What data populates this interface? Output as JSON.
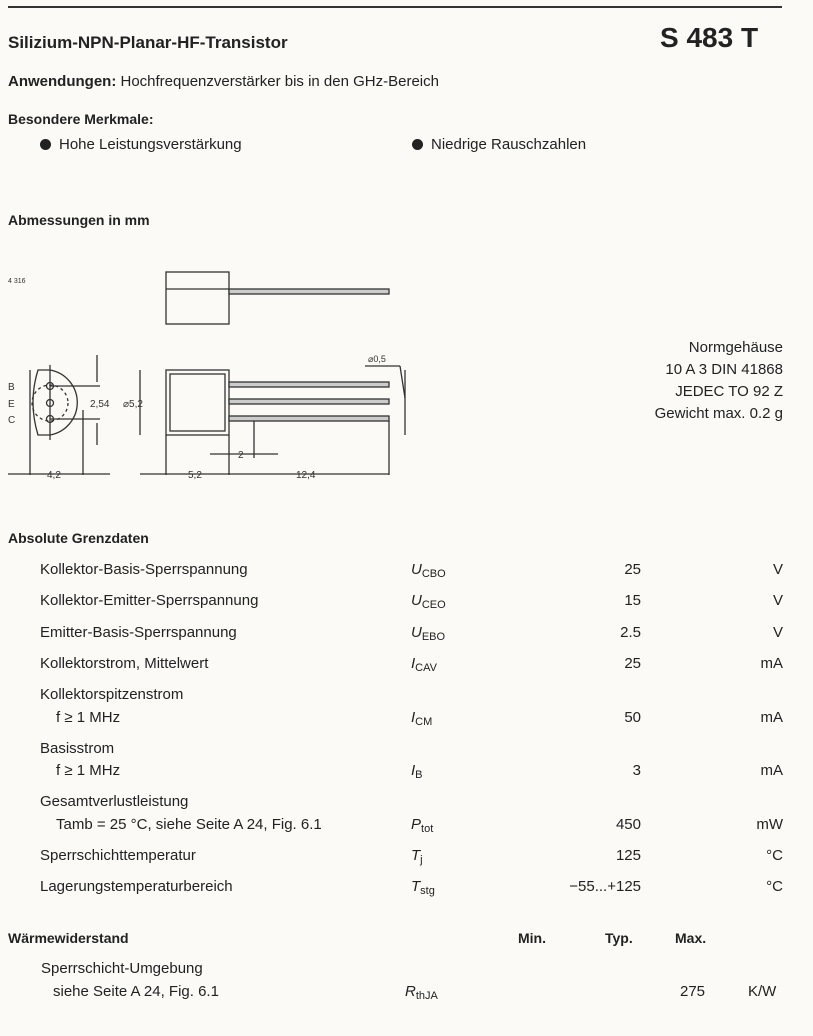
{
  "header": {
    "title": "Silizium-NPN-Planar-HF-Transistor",
    "part": "S 483 T"
  },
  "applications": {
    "label": "Anwendungen:",
    "text": "Hochfrequenzverstärker bis in den GHz-Bereich"
  },
  "features": {
    "heading": "Besondere Merkmale:",
    "items": [
      "Hohe Leistungsverstärkung",
      "Niedrige Rauschzahlen"
    ]
  },
  "dimensions": {
    "heading": "Abmessungen in mm",
    "drawing_id": "4 316",
    "pins": [
      "B",
      "E",
      "C"
    ],
    "labels": {
      "pitch": "2,54",
      "diameter": "⌀5,2",
      "lead_dia": "⌀0,5",
      "width": "4,2",
      "body_len": "5,2",
      "gap": "2",
      "lead_len": "12,4"
    }
  },
  "package": {
    "lines": [
      "Normgehäuse",
      "10 A 3 DIN 41868",
      "JEDEC TO 92 Z",
      "Gewicht max. 0.2 g"
    ]
  },
  "ratings": {
    "heading": "Absolute Grenzdaten",
    "rows": [
      {
        "label": "Kollektor-Basis-Sperrspannung",
        "sub": "",
        "sym": "U",
        "symsub": "CBO",
        "value": "25",
        "unit": "V"
      },
      {
        "label": "Kollektor-Emitter-Sperrspannung",
        "sub": "",
        "sym": "U",
        "symsub": "CEO",
        "value": "15",
        "unit": "V"
      },
      {
        "label": "Emitter-Basis-Sperrspannung",
        "sub": "",
        "sym": "U",
        "symsub": "EBO",
        "value": "2.5",
        "unit": "V"
      },
      {
        "label": "Kollektorstrom, Mittelwert",
        "sub": "",
        "sym": "I",
        "symsub": "CAV",
        "value": "25",
        "unit": "mA"
      },
      {
        "label": "Kollektorspitzenstrom",
        "sub": "f ≥ 1 MHz",
        "sym": "I",
        "symsub": "CM",
        "value": "50",
        "unit": "mA"
      },
      {
        "label": "Basisstrom",
        "sub": "f ≥ 1 MHz",
        "sym": "I",
        "symsub": "B",
        "value": "3",
        "unit": "mA"
      },
      {
        "label": "Gesamtverlustleistung",
        "sub": "Tamb = 25 °C, siehe Seite A 24, Fig. 6.1",
        "sym": "P",
        "symsub": "tot",
        "value": "450",
        "unit": "mW"
      },
      {
        "label": "Sperrschichttemperatur",
        "sub": "",
        "sym": "T",
        "symsub": "j",
        "value": "125",
        "unit": "°C"
      },
      {
        "label": "Lagerungstemperaturbereich",
        "sub": "",
        "sym": "T",
        "symsub": "stg",
        "value": "−55...+125",
        "unit": "°C"
      }
    ]
  },
  "thermal": {
    "heading": "Wärmewiderstand",
    "cols": [
      "Min.",
      "Typ.",
      "Max."
    ],
    "row": {
      "label": "Sperrschicht-Umgebung",
      "sub": "siehe Seite A 24, Fig. 6.1",
      "sym": "R",
      "symsub": "thJA",
      "min": "",
      "typ": "",
      "max": "275",
      "unit": "K/W"
    }
  }
}
